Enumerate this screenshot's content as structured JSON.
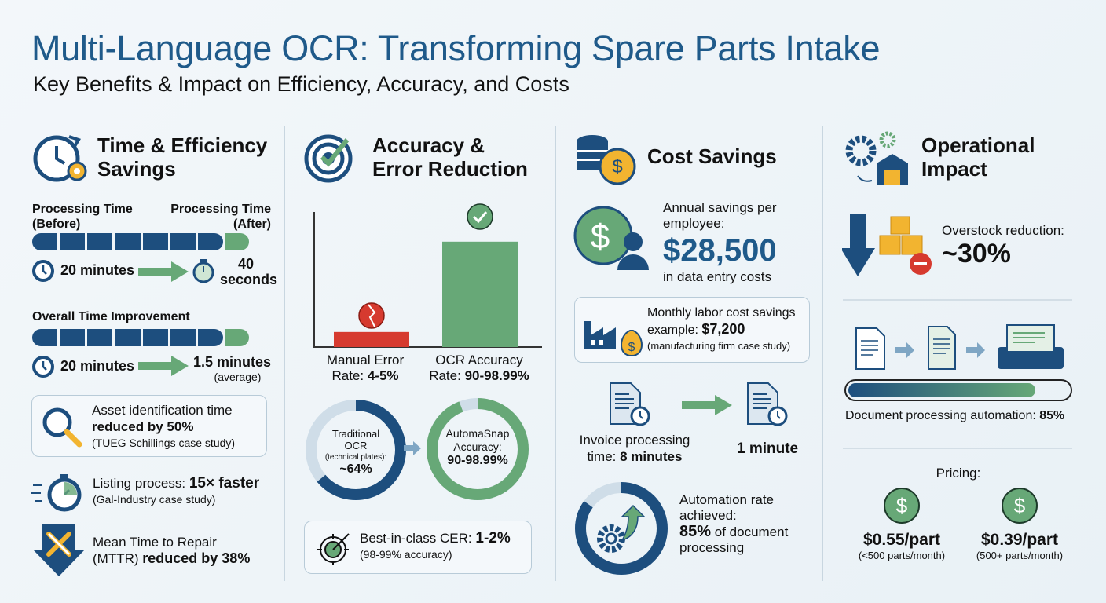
{
  "header": {
    "title": "Multi-Language OCR: Transforming Spare Parts Intake",
    "subtitle": "Key Benefits & Impact on Efficiency, Accuracy, and Costs"
  },
  "time": {
    "heading1": "Time & Efficiency",
    "heading2": "Savings",
    "before_label": "Processing Time (Before)",
    "after_label": "Processing Time (After)",
    "before_value": "20 minutes",
    "after_value1": "40",
    "after_value2": "seconds",
    "overall_label": "Overall Time Improvement",
    "overall_before": "20 minutes",
    "overall_after": "1.5 minutes",
    "overall_after_note": "(average)",
    "asset_text": "Asset identification time",
    "asset_bold": "reduced by 50%",
    "asset_note": "(TUEG Schillings case study)",
    "listing_text": "Listing process: ",
    "listing_bold": "15× faster",
    "listing_note": "(Gal-Industry case study)",
    "mttr_text1": "Mean Time to Repair",
    "mttr_text2": "(MTTR) ",
    "mttr_bold": "reduced by 38%"
  },
  "accuracy": {
    "heading1": "Accuracy &",
    "heading2": "Error Reduction",
    "chart_data": {
      "type": "bar",
      "categories": [
        "Manual Error Rate",
        "OCR Accuracy Rate"
      ],
      "values": [
        4.5,
        94.5
      ],
      "ylim": [
        0,
        100
      ],
      "colors": [
        "#d63a2f",
        "#67a877"
      ]
    },
    "manual_label": "Manual Error",
    "manual_rate_prefix": "Rate: ",
    "manual_rate": "4-5%",
    "ocr_label": "OCR Accuracy",
    "ocr_rate_prefix": "Rate: ",
    "ocr_rate": "90-98.99%",
    "trad_l1": "Traditional",
    "trad_l2": "OCR",
    "trad_l3": "(technical plates):",
    "trad_value": "~64%",
    "trad_pct": 64,
    "snap_l1": "AutomaSnap",
    "snap_l2": "Accuracy:",
    "snap_value": "90-98.99%",
    "snap_pct": 94,
    "cer_text": "Best-in-class CER: ",
    "cer_bold": "1-2%",
    "cer_note": "(98-99% accuracy)"
  },
  "cost": {
    "heading": "Cost Savings",
    "annual_l1": "Annual savings per",
    "annual_l2": "employee:",
    "annual_value": "$28,500",
    "annual_note": "in data entry costs",
    "monthly_l1": "Monthly labor cost savings",
    "monthly_l2": "example: ",
    "monthly_value": "$7,200",
    "monthly_note": "(manufacturing firm case study)",
    "invoice_l1": "Invoice processing",
    "invoice_l2": "time: ",
    "invoice_value": "8 minutes",
    "invoice_after": "1 minute",
    "auto_l1": "Automation rate",
    "auto_l2": "achieved:",
    "auto_value": "85%",
    "auto_rest": " of document",
    "auto_l4": "processing",
    "auto_pct": 85
  },
  "ops": {
    "heading1": "Operational",
    "heading2": "Impact",
    "overstock_label": "Overstock reduction:",
    "overstock_value": "~30%",
    "doc_label": "Document processing automation: ",
    "doc_value": "85%",
    "doc_pct": 85,
    "pricing_label": "Pricing:",
    "price1": "$0.55/part",
    "price1_note": "(<500 parts/month)",
    "price2": "$0.39/part",
    "price2_note": "(500+ parts/month)"
  },
  "colors": {
    "navy": "#1d4e7e",
    "green": "#67a877",
    "red": "#d63a2f",
    "yellow": "#f2b430",
    "title": "#1f5a8a"
  }
}
